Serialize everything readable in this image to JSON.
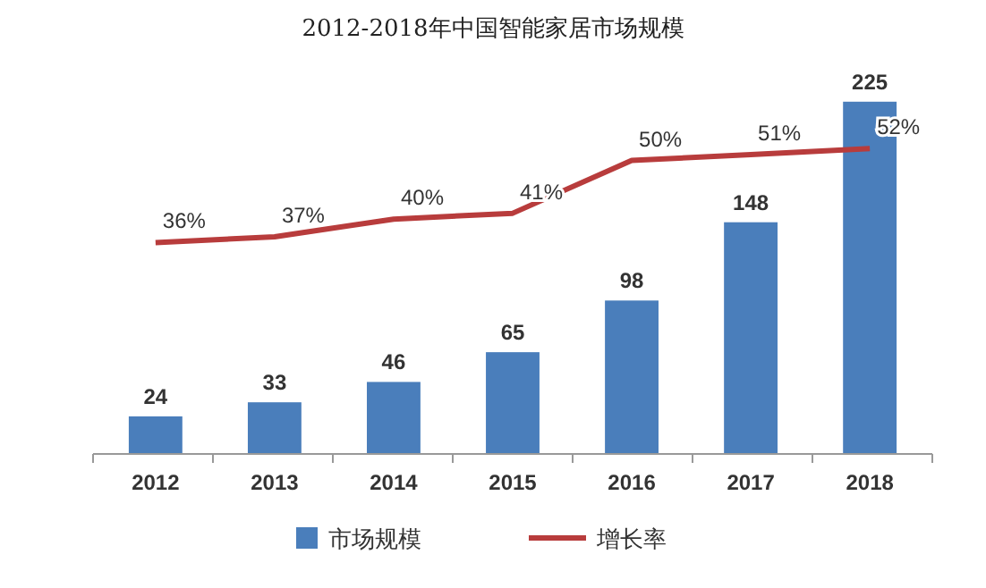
{
  "chart_data": {
    "type": "bar",
    "title": "2012-2018年中国智能家居市场规模",
    "categories": [
      "2012",
      "2013",
      "2014",
      "2015",
      "2016",
      "2017",
      "2018"
    ],
    "series": [
      {
        "name": "市场规模",
        "color": "#4a7ebb",
        "values": [
          24,
          33,
          46,
          65,
          98,
          148,
          225
        ]
      },
      {
        "name": "增长率",
        "type": "line",
        "axis": "y2",
        "color": "#b83c3c",
        "values": [
          36,
          37,
          40,
          41,
          50,
          51,
          52
        ],
        "value_labels": [
          "36%",
          "37%",
          "40%",
          "41%",
          "50%",
          "51%",
          "52%"
        ]
      }
    ],
    "data_labels": true,
    "tick_labels": "x",
    "legend": "bottom",
    "marker": "none",
    "line_style": "solid",
    "grid": false
  }
}
